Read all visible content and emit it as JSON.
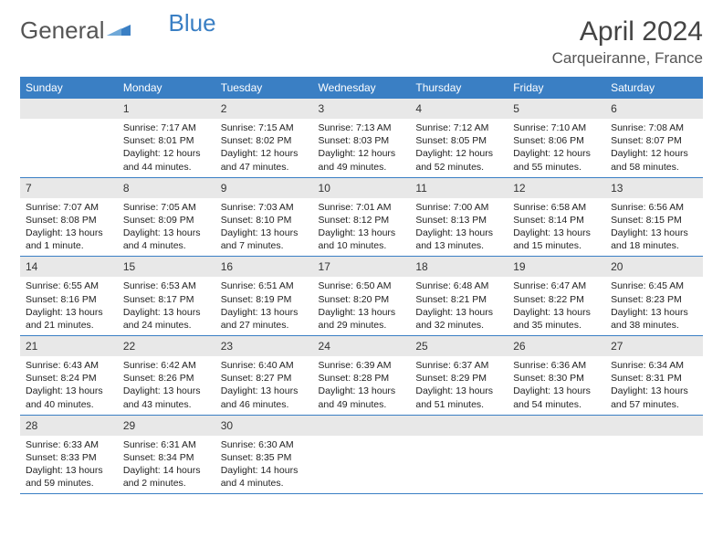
{
  "brand": {
    "part1": "General",
    "part2": "Blue"
  },
  "title": "April 2024",
  "location": "Carqueiranne, France",
  "colors": {
    "header_bg": "#3a7fc4",
    "header_text": "#ffffff",
    "daynum_bg": "#e8e8e8",
    "border": "#3a7fc4",
    "text": "#222222",
    "title_text": "#444444",
    "brand_gray": "#555555",
    "brand_blue": "#3a7fc4"
  },
  "typography": {
    "title_fontsize": 30,
    "location_fontsize": 17,
    "weekday_fontsize": 12,
    "daynum_fontsize": 12,
    "body_fontsize": 10.5
  },
  "weekdays": [
    "Sunday",
    "Monday",
    "Tuesday",
    "Wednesday",
    "Thursday",
    "Friday",
    "Saturday"
  ],
  "weeks": [
    [
      null,
      {
        "n": "1",
        "sunrise": "7:17 AM",
        "sunset": "8:01 PM",
        "daylight": "12 hours and 44 minutes."
      },
      {
        "n": "2",
        "sunrise": "7:15 AM",
        "sunset": "8:02 PM",
        "daylight": "12 hours and 47 minutes."
      },
      {
        "n": "3",
        "sunrise": "7:13 AM",
        "sunset": "8:03 PM",
        "daylight": "12 hours and 49 minutes."
      },
      {
        "n": "4",
        "sunrise": "7:12 AM",
        "sunset": "8:05 PM",
        "daylight": "12 hours and 52 minutes."
      },
      {
        "n": "5",
        "sunrise": "7:10 AM",
        "sunset": "8:06 PM",
        "daylight": "12 hours and 55 minutes."
      },
      {
        "n": "6",
        "sunrise": "7:08 AM",
        "sunset": "8:07 PM",
        "daylight": "12 hours and 58 minutes."
      }
    ],
    [
      {
        "n": "7",
        "sunrise": "7:07 AM",
        "sunset": "8:08 PM",
        "daylight": "13 hours and 1 minute."
      },
      {
        "n": "8",
        "sunrise": "7:05 AM",
        "sunset": "8:09 PM",
        "daylight": "13 hours and 4 minutes."
      },
      {
        "n": "9",
        "sunrise": "7:03 AM",
        "sunset": "8:10 PM",
        "daylight": "13 hours and 7 minutes."
      },
      {
        "n": "10",
        "sunrise": "7:01 AM",
        "sunset": "8:12 PM",
        "daylight": "13 hours and 10 minutes."
      },
      {
        "n": "11",
        "sunrise": "7:00 AM",
        "sunset": "8:13 PM",
        "daylight": "13 hours and 13 minutes."
      },
      {
        "n": "12",
        "sunrise": "6:58 AM",
        "sunset": "8:14 PM",
        "daylight": "13 hours and 15 minutes."
      },
      {
        "n": "13",
        "sunrise": "6:56 AM",
        "sunset": "8:15 PM",
        "daylight": "13 hours and 18 minutes."
      }
    ],
    [
      {
        "n": "14",
        "sunrise": "6:55 AM",
        "sunset": "8:16 PM",
        "daylight": "13 hours and 21 minutes."
      },
      {
        "n": "15",
        "sunrise": "6:53 AM",
        "sunset": "8:17 PM",
        "daylight": "13 hours and 24 minutes."
      },
      {
        "n": "16",
        "sunrise": "6:51 AM",
        "sunset": "8:19 PM",
        "daylight": "13 hours and 27 minutes."
      },
      {
        "n": "17",
        "sunrise": "6:50 AM",
        "sunset": "8:20 PM",
        "daylight": "13 hours and 29 minutes."
      },
      {
        "n": "18",
        "sunrise": "6:48 AM",
        "sunset": "8:21 PM",
        "daylight": "13 hours and 32 minutes."
      },
      {
        "n": "19",
        "sunrise": "6:47 AM",
        "sunset": "8:22 PM",
        "daylight": "13 hours and 35 minutes."
      },
      {
        "n": "20",
        "sunrise": "6:45 AM",
        "sunset": "8:23 PM",
        "daylight": "13 hours and 38 minutes."
      }
    ],
    [
      {
        "n": "21",
        "sunrise": "6:43 AM",
        "sunset": "8:24 PM",
        "daylight": "13 hours and 40 minutes."
      },
      {
        "n": "22",
        "sunrise": "6:42 AM",
        "sunset": "8:26 PM",
        "daylight": "13 hours and 43 minutes."
      },
      {
        "n": "23",
        "sunrise": "6:40 AM",
        "sunset": "8:27 PM",
        "daylight": "13 hours and 46 minutes."
      },
      {
        "n": "24",
        "sunrise": "6:39 AM",
        "sunset": "8:28 PM",
        "daylight": "13 hours and 49 minutes."
      },
      {
        "n": "25",
        "sunrise": "6:37 AM",
        "sunset": "8:29 PM",
        "daylight": "13 hours and 51 minutes."
      },
      {
        "n": "26",
        "sunrise": "6:36 AM",
        "sunset": "8:30 PM",
        "daylight": "13 hours and 54 minutes."
      },
      {
        "n": "27",
        "sunrise": "6:34 AM",
        "sunset": "8:31 PM",
        "daylight": "13 hours and 57 minutes."
      }
    ],
    [
      {
        "n": "28",
        "sunrise": "6:33 AM",
        "sunset": "8:33 PM",
        "daylight": "13 hours and 59 minutes."
      },
      {
        "n": "29",
        "sunrise": "6:31 AM",
        "sunset": "8:34 PM",
        "daylight": "14 hours and 2 minutes."
      },
      {
        "n": "30",
        "sunrise": "6:30 AM",
        "sunset": "8:35 PM",
        "daylight": "14 hours and 4 minutes."
      },
      null,
      null,
      null,
      null
    ]
  ],
  "labels": {
    "sunrise": "Sunrise:",
    "sunset": "Sunset:",
    "daylight": "Daylight:"
  }
}
